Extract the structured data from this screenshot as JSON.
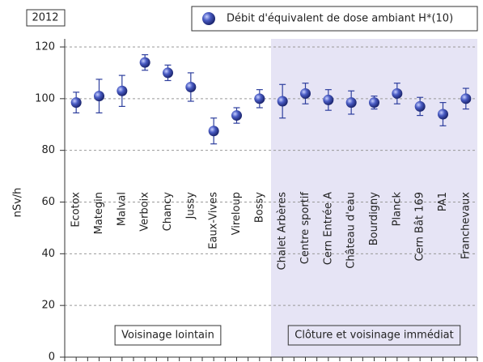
{
  "chart_data": {
    "type": "errorbar",
    "annotations": {
      "year": "2012"
    },
    "y_label": "nSv/h",
    "categories": [
      "Ecotox",
      "Mategin",
      "Malval",
      "Verboix",
      "Chancy",
      "Jussy",
      "Eaux-Vives",
      "Vireloup",
      "Bossy",
      "Chalet Arbères",
      "Centre sportif",
      "Cern Entrée A",
      "Château d'eau",
      "Bourdigny",
      "Planck",
      "Cern Bât 169",
      "PA1",
      "Franchevaux"
    ],
    "series": [
      {
        "name": "Débit d'équivalent de dose ambiant H*(10)",
        "color": "#2e3f9e",
        "values": [
          98.5,
          101,
          103,
          114,
          110,
          104.5,
          87.5,
          93.5,
          100,
          99,
          102,
          99.5,
          98.5,
          98.5,
          102,
          97,
          94,
          100
        ],
        "errors": [
          4,
          6.5,
          6,
          3,
          3,
          5.5,
          5,
          3,
          3.5,
          6.5,
          4,
          4,
          4.5,
          2.5,
          4,
          3.5,
          4.5,
          4
        ]
      }
    ],
    "regions": [
      {
        "label": "Voisinage lointain",
        "first": 0,
        "last": 8,
        "shade": null
      },
      {
        "label": "Clôture et voisinage immédiat",
        "first": 9,
        "last": 17,
        "shade": "#e6e4f5"
      }
    ],
    "ylim": [
      0,
      120
    ],
    "yticks": [
      0,
      20,
      40,
      60,
      80,
      100,
      120
    ],
    "grid": true
  }
}
